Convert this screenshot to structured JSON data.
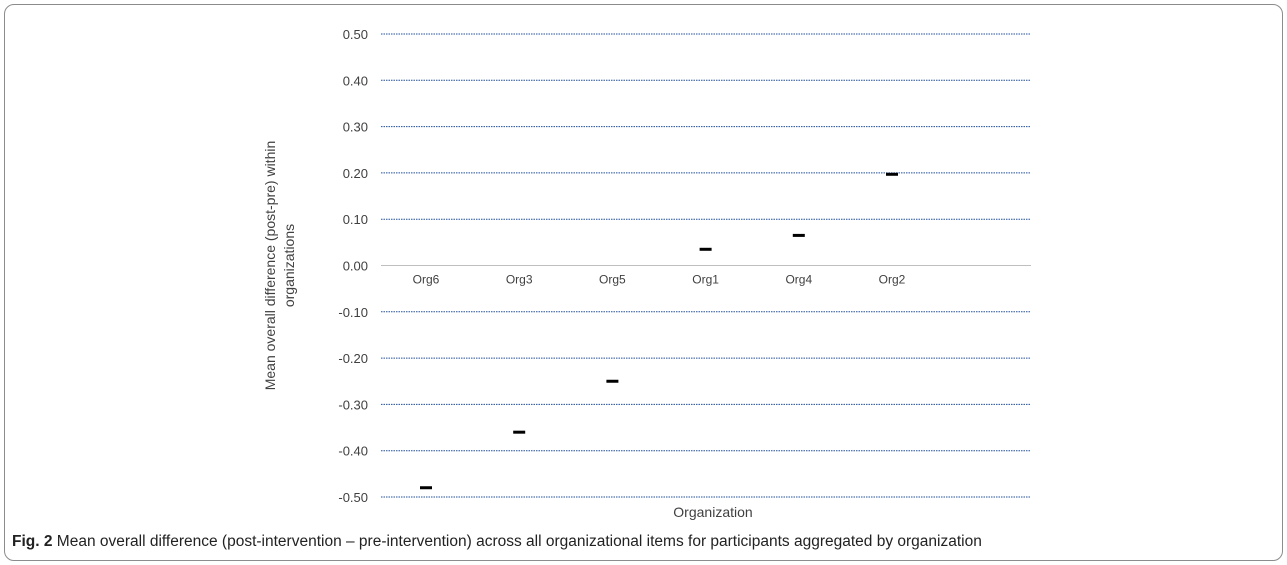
{
  "chart_data": {
    "type": "scatter",
    "marker": "dash",
    "categories": [
      "Org6",
      "Org3",
      "Org5",
      "Org1",
      "Org4",
      "Org2"
    ],
    "values": [
      -0.48,
      -0.36,
      -0.25,
      0.035,
      0.065,
      0.197
    ],
    "xlabel": "Organization",
    "ylabel": "Mean overall difference (post-pre) within organizations",
    "ylim": [
      -0.5,
      0.5
    ],
    "yticks": [
      0.5,
      0.4,
      0.3,
      0.2,
      0.1,
      0.0,
      -0.1,
      -0.2,
      -0.3,
      -0.4,
      -0.5
    ],
    "ytick_labels": [
      "0.50",
      "0.40",
      "0.30",
      "0.20",
      "0.10",
      "0.00",
      "-0.10",
      "-0.20",
      "-0.30",
      "-0.40",
      "-0.50"
    ],
    "grid": true,
    "colors": {
      "grid": "#1f4e9c",
      "marker": "#000000",
      "zero_line": "#bfbfbf",
      "text": "#404040"
    }
  },
  "caption": {
    "label": "Fig. 2",
    "text": " Mean overall difference (post-intervention – pre-intervention) across all organizational items for participants aggregated by organization"
  }
}
